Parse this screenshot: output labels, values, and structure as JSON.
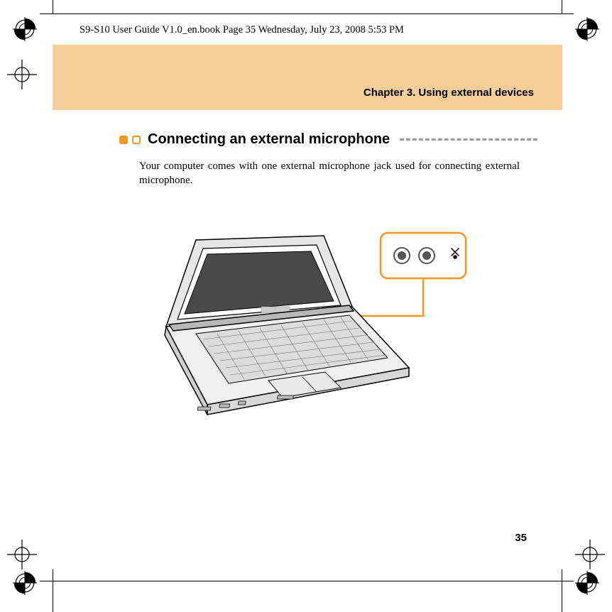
{
  "meta_header": "S9-S10 User Guide V1.0_en.book  Page 35  Wednesday, July 23, 2008  5:53 PM",
  "banner": {
    "background_color": "#f5cd99",
    "chapter_title": "Chapter 3. Using external devices"
  },
  "section": {
    "accent_color": "#f49524",
    "heading": "Connecting an external microphone",
    "body": "Your computer comes with one external microphone jack used for connecting external microphone."
  },
  "figure": {
    "callout_box_stroke": "#f49524",
    "callout_line_stroke": "#f49524",
    "callout_dot_fill": "#f49524",
    "laptop_body": "#e6e6e6",
    "laptop_stroke": "#000000",
    "screen_fill": "#4a4a4a"
  },
  "page_number": "35",
  "colors": {
    "text": "#000000",
    "dash": "#9a9a9a"
  }
}
